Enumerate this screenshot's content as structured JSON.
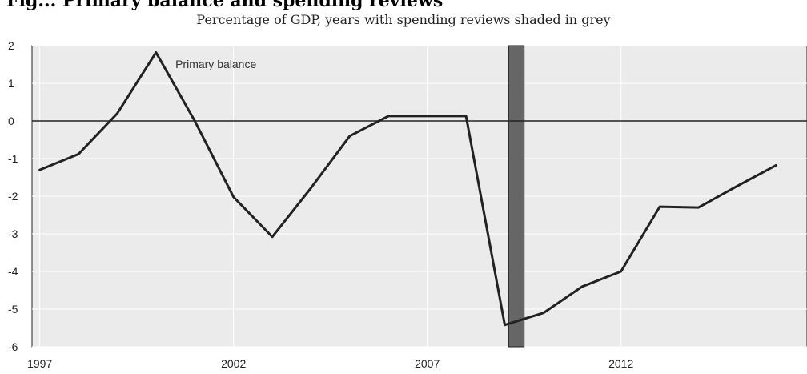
{
  "header": {
    "title": "Fig... Primary balance and spending reviews",
    "subtitle": "Percentage of GDP, years with spending reviews shaded in grey"
  },
  "chart_data": {
    "type": "line",
    "title": "",
    "subtitle": "Percentage of GDP, years with spending reviews shaded in grey",
    "xlabel": "",
    "ylabel": "",
    "xlim": [
      1996.8,
      2016.8
    ],
    "ylim": [
      -6,
      2
    ],
    "x_ticks": [
      "1997",
      "2002",
      "2007",
      "2012"
    ],
    "x_tick_values": [
      1997,
      2002,
      2007,
      2012
    ],
    "y_ticks": [
      2,
      1,
      0,
      -1,
      -2,
      -3,
      -4,
      -5,
      -6
    ],
    "grid": true,
    "background": "#ebebeb",
    "line_color": "#222222",
    "shade_color": "#666666",
    "shaded_periods": [
      [
        2009.1,
        2009.5
      ]
    ],
    "annotation": "Primary balance",
    "series": [
      {
        "name": "Primary balance",
        "x": [
          1997,
          1998,
          1999,
          2000,
          2001,
          2002,
          2003,
          2004,
          2005,
          2006,
          2007,
          2008,
          2009,
          2010,
          2011,
          2012,
          2013,
          2014,
          2015,
          2016
        ],
        "values": [
          -1.3,
          -0.88,
          0.2,
          1.82,
          0.0,
          -2.02,
          -3.08,
          -1.78,
          -0.4,
          0.13,
          0.13,
          0.13,
          -5.42,
          -5.1,
          -4.4,
          -4.0,
          -2.28,
          -2.3,
          -1.73,
          -1.18
        ]
      }
    ]
  }
}
